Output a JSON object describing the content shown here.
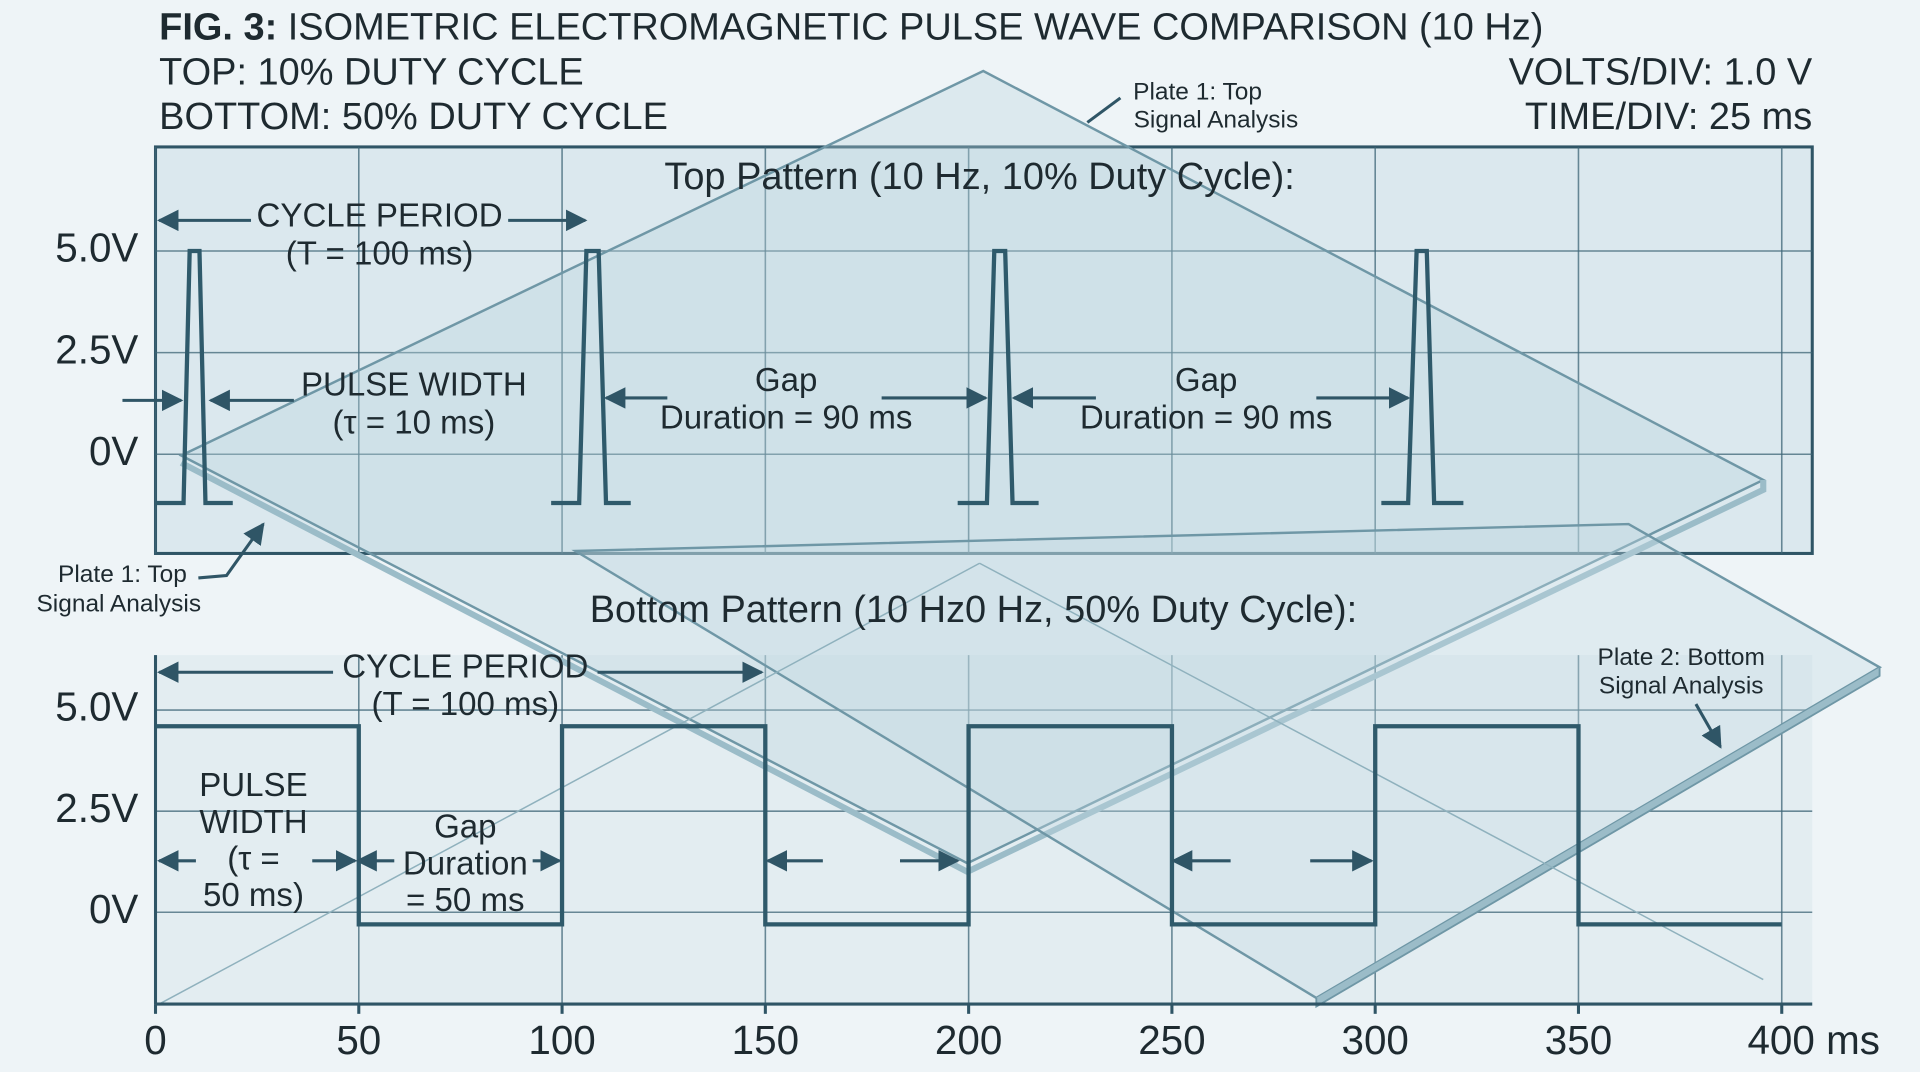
{
  "figure": {
    "label": "FIG. 3:",
    "title": "ISOMETRIC ELECTROMAGNETIC PULSE WAVE COMPARISON (10 Hz)",
    "top_caption": "TOP: 10% DUTY CYCLE",
    "bottom_caption": "BOTTOM: 50% DUTY CYCLE",
    "volts_div": "VOLTS/DIV: 1.0 V",
    "time_div": "TIME/DIV: 25 ms"
  },
  "plates": [
    [
      "Plate 1: Top",
      "Signal Analysis"
    ],
    [
      "Plate 1: Top",
      "Signal Analysis"
    ],
    [
      "Plate 2: Bottom",
      "Signal Analysis"
    ]
  ],
  "chart_data": [
    {
      "type": "line",
      "title": "Top Pattern (10 Hz, 10% Duty Cycle):",
      "color": "#2f5a6b",
      "grid": true,
      "x": [
        0,
        6.9,
        8.4,
        10.8,
        12.3,
        19,
        58,
        97.3,
        104.2,
        106,
        109,
        110.8,
        116.9,
        157,
        197.3,
        204.5,
        206.3,
        209,
        210.8,
        217.2,
        259,
        301.5,
        308.1,
        310.2,
        312.7,
        314.5,
        321.7
      ],
      "values": [
        -1.2,
        -1.2,
        5,
        5,
        -1.2,
        -1.2,
        null,
        -1.2,
        -1.2,
        5,
        5,
        -1.2,
        -1.2,
        null,
        -1.2,
        -1.2,
        5,
        5,
        -1.2,
        -1.2,
        null,
        -1.2,
        -1.2,
        5,
        5,
        -1.2,
        -1.2
      ],
      "xlim": [
        0,
        407.5
      ],
      "ylim": [
        -2.44,
        7.56
      ],
      "yticks": [
        {
          "value": 0,
          "label": "0V"
        },
        {
          "value": 2.5,
          "label": "2.5V"
        },
        {
          "value": 5,
          "label": "5.0V"
        }
      ],
      "annotations": [
        [
          "CYCLE PERIOD",
          "(T = 100 ms)"
        ],
        [
          "PULSE WIDTH",
          "(τ = 10 ms)"
        ],
        [
          "Gap",
          "Duration = 90 ms"
        ],
        [
          "Gap",
          "Duration = 90 ms"
        ]
      ]
    },
    {
      "type": "line",
      "title": "Bottom Pattern (10 Hz0 Hz, 50% Duty Cycle):",
      "color": "#2f5a6b",
      "grid": true,
      "x": [
        0,
        50,
        50,
        100,
        100,
        150,
        150,
        200,
        200,
        250,
        250,
        300,
        300,
        350,
        350,
        400
      ],
      "values": [
        4.6,
        4.6,
        -0.3,
        -0.3,
        4.6,
        4.6,
        -0.3,
        -0.3,
        4.6,
        4.6,
        -0.3,
        -0.3,
        4.6,
        4.6,
        -0.3,
        -0.3
      ],
      "xlim": [
        0,
        407.5
      ],
      "ylim": [
        -2.27,
        6.36
      ],
      "xticks": [
        0,
        50,
        100,
        150,
        200,
        250,
        300,
        350,
        {
          "value": 400,
          "label": "400 ms"
        }
      ],
      "yticks": [
        {
          "value": 0,
          "label": "0V"
        },
        {
          "value": 2.5,
          "label": "2.5V"
        },
        {
          "value": 5,
          "label": "5.0V"
        }
      ],
      "annotations": [
        [
          "CYCLE PERIOD",
          "(T = 100 ms)"
        ],
        [
          "PULSE",
          "WIDTH",
          "(τ =",
          "50 ms)"
        ],
        [
          "Gap",
          "Duration",
          "= 50 ms"
        ]
      ]
    }
  ]
}
